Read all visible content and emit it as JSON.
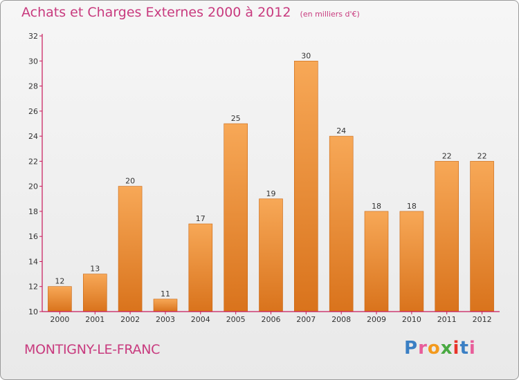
{
  "chart_data": {
    "type": "bar",
    "title": "Achats et Charges Externes 2000 à 2012",
    "unit": "(en milliers d'€)",
    "categories": [
      "2000",
      "2001",
      "2002",
      "2003",
      "2004",
      "2005",
      "2006",
      "2007",
      "2008",
      "2009",
      "2010",
      "2011",
      "2012"
    ],
    "values": [
      12,
      13,
      20,
      11,
      17,
      25,
      19,
      30,
      24,
      18,
      18,
      22,
      22
    ],
    "ylim": [
      10,
      32
    ],
    "yticks": [
      10,
      12,
      14,
      16,
      18,
      20,
      22,
      24,
      26,
      28,
      30,
      32
    ],
    "xlabel": "",
    "ylabel": "",
    "grid": false
  },
  "footer": {
    "commune": "MONTIGNY-LE-FRANC",
    "logo_text": "Proxiti"
  },
  "colors": {
    "bar_light": "#f7a857",
    "bar_dark": "#d9731c",
    "title": "#c83a7e",
    "axis": "#c8185a"
  }
}
